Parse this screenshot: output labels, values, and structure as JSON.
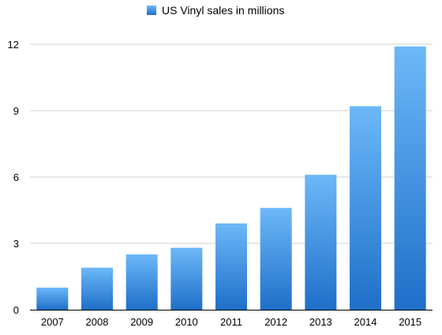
{
  "chart_data": {
    "type": "bar",
    "legend": {
      "position": "top-center",
      "entries": [
        "US Vinyl sales in millions"
      ]
    },
    "categories": [
      "2007",
      "2008",
      "2009",
      "2010",
      "2011",
      "2012",
      "2013",
      "2014",
      "2015"
    ],
    "series": [
      {
        "name": "US Vinyl sales in millions",
        "values": [
          1.0,
          1.9,
          2.5,
          2.8,
          3.9,
          4.6,
          6.1,
          9.2,
          11.9
        ],
        "color_top": "#6cb8f8",
        "color_bottom": "#1f6fc9"
      }
    ],
    "ylim": [
      0,
      12
    ],
    "yticks": [
      0,
      3,
      6,
      9,
      12
    ],
    "grid": true,
    "xlabel": "",
    "ylabel": ""
  }
}
